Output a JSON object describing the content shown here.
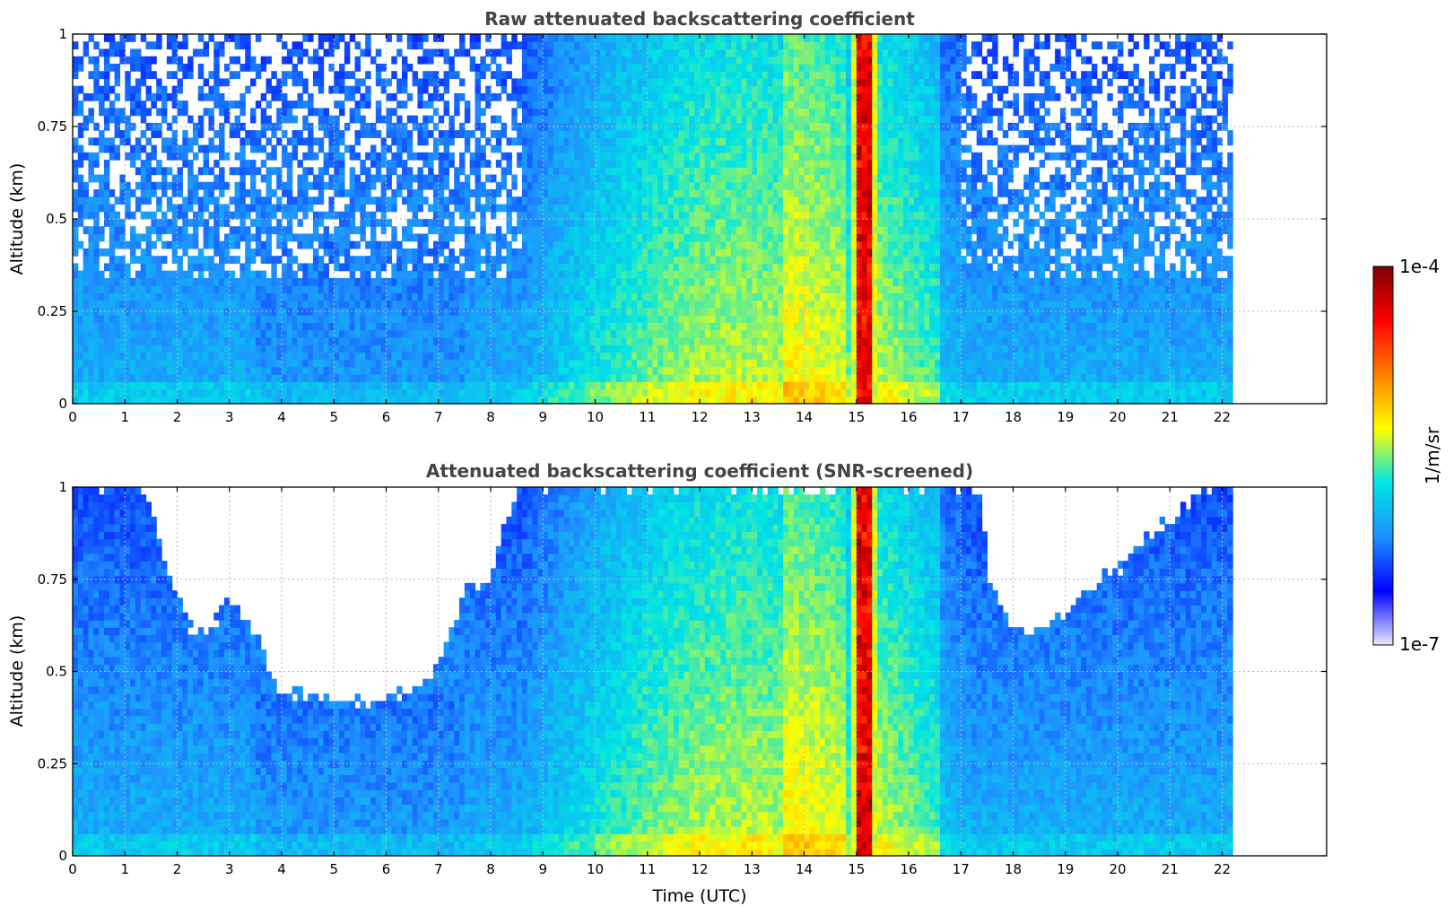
{
  "chart_data": [
    {
      "type": "heatmap",
      "title": "Raw attenuated backscattering coefficient",
      "xlabel": "",
      "ylabel": "Altitude (km)",
      "xlim": [
        0,
        24
      ],
      "ylim": [
        0,
        1
      ],
      "x_ticks": [
        "0",
        "1",
        "2",
        "3",
        "4",
        "5",
        "6",
        "7",
        "8",
        "9",
        "10",
        "11",
        "12",
        "13",
        "14",
        "15",
        "16",
        "17",
        "18",
        "19",
        "20",
        "21",
        "22"
      ],
      "y_ticks": [
        "0",
        "0.25",
        "0.5",
        "0.75",
        "1"
      ],
      "data_extent_x": [
        0,
        22.2
      ],
      "grid": true,
      "screened": false,
      "features": [
        {
          "x_range": [
            15.0,
            15.25
          ],
          "altitude_range": [
            0,
            1
          ],
          "level": "max"
        },
        {
          "x_range": [
            9.0,
            16.8
          ],
          "altitude_range": [
            0,
            1
          ],
          "level": "elevated"
        }
      ]
    },
    {
      "type": "heatmap",
      "title": "Attenuated backscattering coefficient (SNR-screened)",
      "xlabel": "Time (UTC)",
      "ylabel": "Altitude (km)",
      "xlim": [
        0,
        24
      ],
      "ylim": [
        0,
        1
      ],
      "x_ticks": [
        "0",
        "1",
        "2",
        "3",
        "4",
        "5",
        "6",
        "7",
        "8",
        "9",
        "10",
        "11",
        "12",
        "13",
        "14",
        "15",
        "16",
        "17",
        "18",
        "19",
        "20",
        "21",
        "22"
      ],
      "y_ticks": [
        "0",
        "0.25",
        "0.5",
        "0.75",
        "1"
      ],
      "data_extent_x": [
        0,
        22.2
      ],
      "grid": true,
      "screened": true,
      "screen_boundary": [
        [
          0,
          1.0
        ],
        [
          1.4,
          1.0
        ],
        [
          1.6,
          0.88
        ],
        [
          1.9,
          0.72
        ],
        [
          2.3,
          0.6
        ],
        [
          2.7,
          0.62
        ],
        [
          3.0,
          0.7
        ],
        [
          3.5,
          0.6
        ],
        [
          3.9,
          0.45
        ],
        [
          4.5,
          0.44
        ],
        [
          5.5,
          0.42
        ],
        [
          6.5,
          0.44
        ],
        [
          7.0,
          0.52
        ],
        [
          7.5,
          0.72
        ],
        [
          8.0,
          0.75
        ],
        [
          8.3,
          0.92
        ],
        [
          8.6,
          1.0
        ],
        [
          17.4,
          1.0
        ],
        [
          17.5,
          0.75
        ],
        [
          18.0,
          0.62
        ],
        [
          18.5,
          0.62
        ],
        [
          19.0,
          0.65
        ],
        [
          19.5,
          0.74
        ],
        [
          20.0,
          0.78
        ],
        [
          20.5,
          0.85
        ],
        [
          21.0,
          0.92
        ],
        [
          21.5,
          0.98
        ],
        [
          22.2,
          1.0
        ]
      ]
    }
  ],
  "colorbar": {
    "label": "1/m/sr",
    "max_label": "1e-4",
    "min_label": "1e-7",
    "scale": "log",
    "range": [
      1e-07,
      0.0001
    ],
    "colors": [
      "#e8e8ff",
      "#0000ff",
      "#1e90ff",
      "#00e5e5",
      "#ffff00",
      "#ff8000",
      "#ff0000",
      "#800000"
    ]
  }
}
